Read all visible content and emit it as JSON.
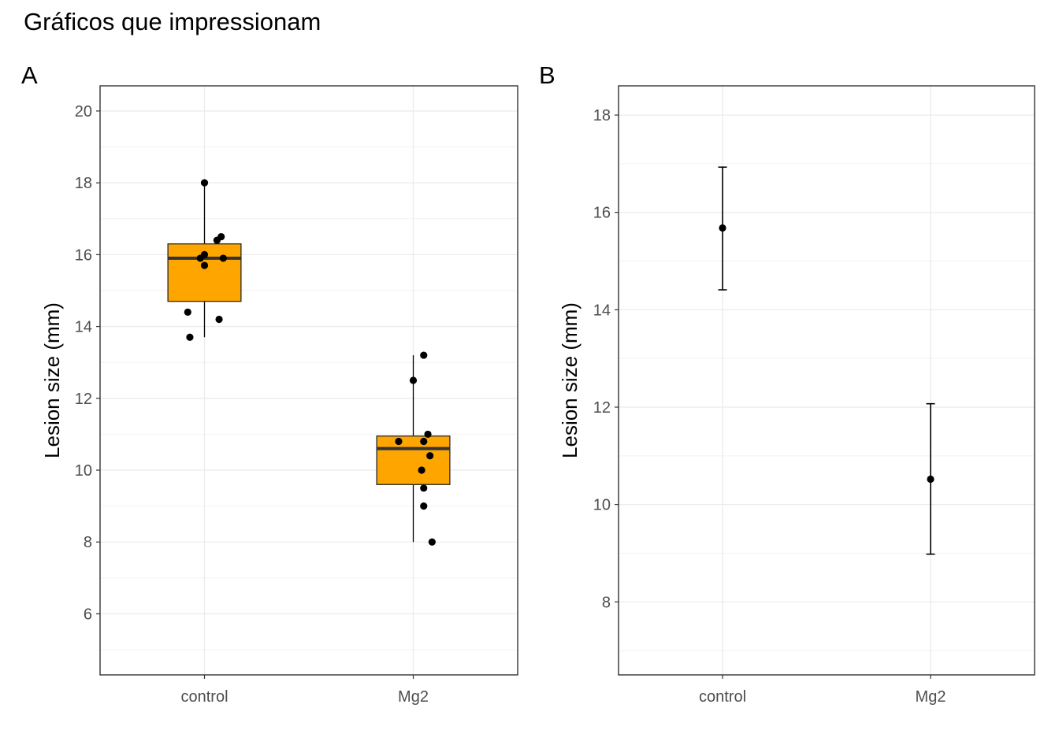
{
  "title": "Gráficos que impressionam",
  "chart_data": [
    {
      "panel": "A",
      "type": "boxplot",
      "categories": [
        "control",
        "Mg2"
      ],
      "ylabel": "Lesion size (mm)",
      "xlabel": "",
      "ylim": [
        4.3,
        20.7
      ],
      "yticks": [
        6,
        8,
        10,
        12,
        14,
        16,
        18,
        20
      ],
      "grid": true,
      "box_fill": "#FFA500",
      "boxes": [
        {
          "category": "control",
          "whisker_low": 13.7,
          "q1": 14.7,
          "median": 15.9,
          "q3": 16.3,
          "whisker_high": 18.0
        },
        {
          "category": "Mg2",
          "whisker_low": 8.0,
          "q1": 9.6,
          "median": 10.6,
          "q3": 10.95,
          "whisker_high": 13.2
        }
      ],
      "points": [
        {
          "category": "control",
          "jitter": 0.0,
          "y": 18.0
        },
        {
          "category": "control",
          "jitter": 0.08,
          "y": 16.5
        },
        {
          "category": "control",
          "jitter": 0.06,
          "y": 16.4
        },
        {
          "category": "control",
          "jitter": 0.0,
          "y": 16.0
        },
        {
          "category": "control",
          "jitter": -0.02,
          "y": 15.9
        },
        {
          "category": "control",
          "jitter": 0.09,
          "y": 15.9
        },
        {
          "category": "control",
          "jitter": 0.0,
          "y": 15.7
        },
        {
          "category": "control",
          "jitter": -0.08,
          "y": 14.4
        },
        {
          "category": "control",
          "jitter": 0.07,
          "y": 14.2
        },
        {
          "category": "control",
          "jitter": -0.07,
          "y": 13.7
        },
        {
          "category": "Mg2",
          "jitter": 0.05,
          "y": 13.2
        },
        {
          "category": "Mg2",
          "jitter": 0.0,
          "y": 12.5
        },
        {
          "category": "Mg2",
          "jitter": 0.07,
          "y": 11.0
        },
        {
          "category": "Mg2",
          "jitter": -0.07,
          "y": 10.8
        },
        {
          "category": "Mg2",
          "jitter": 0.05,
          "y": 10.8
        },
        {
          "category": "Mg2",
          "jitter": 0.08,
          "y": 10.4
        },
        {
          "category": "Mg2",
          "jitter": 0.04,
          "y": 10.0
        },
        {
          "category": "Mg2",
          "jitter": 0.05,
          "y": 9.5
        },
        {
          "category": "Mg2",
          "jitter": 0.05,
          "y": 9.0
        },
        {
          "category": "Mg2",
          "jitter": 0.09,
          "y": 8.0
        }
      ]
    },
    {
      "panel": "B",
      "type": "errorbar",
      "categories": [
        "control",
        "Mg2"
      ],
      "ylabel": "Lesion size (mm)",
      "xlabel": "",
      "ylim": [
        6.5,
        18.6
      ],
      "yticks": [
        8,
        10,
        12,
        14,
        16,
        18
      ],
      "grid": true,
      "series": [
        {
          "category": "control",
          "mean": 15.68,
          "lower": 14.41,
          "upper": 16.93
        },
        {
          "category": "Mg2",
          "mean": 10.52,
          "lower": 8.98,
          "upper": 12.07
        }
      ]
    }
  ]
}
